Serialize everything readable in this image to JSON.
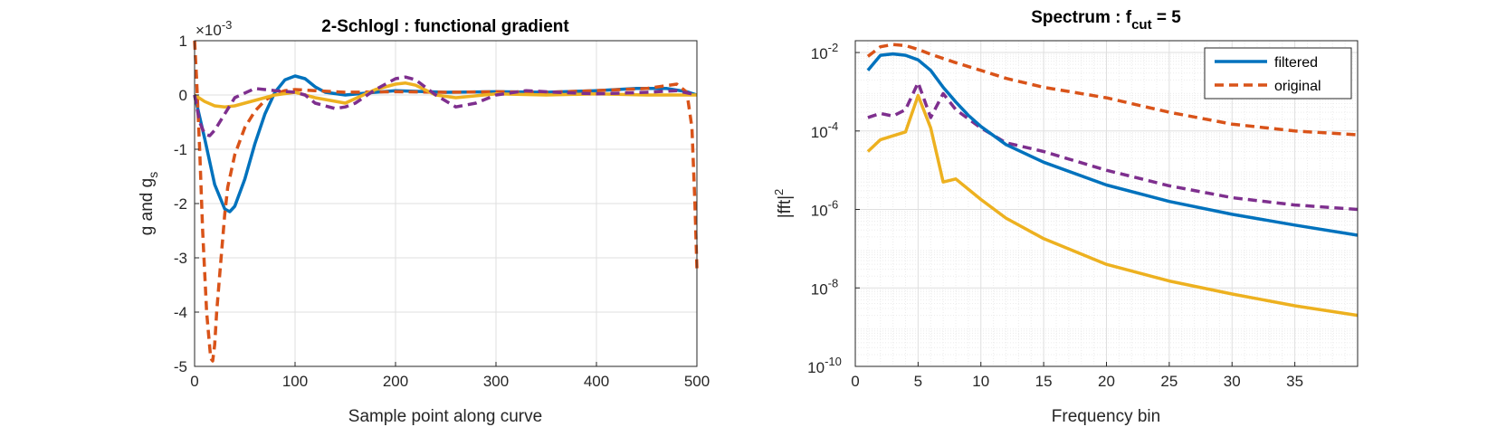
{
  "chart_data": [
    {
      "type": "line",
      "title": "2-Schlogl : functional gradient",
      "xlabel": "Sample point along curve",
      "ylabel": "g and g",
      "ylabel_sub": "s",
      "exponent_label": "×10",
      "exponent_power": "-3",
      "xlim": [
        0,
        500
      ],
      "ylim": [
        -5,
        1
      ],
      "xticks": [
        0,
        100,
        200,
        300,
        400,
        500
      ],
      "yticks": [
        1,
        0,
        -1,
        -2,
        -3,
        -4,
        -5
      ],
      "grid": true,
      "series": [
        {
          "color": "#0072BD",
          "style": "solid",
          "x": [
            0,
            10,
            20,
            30,
            35,
            40,
            50,
            60,
            70,
            80,
            90,
            100,
            110,
            120,
            130,
            150,
            180,
            200,
            250,
            300,
            350,
            400,
            440,
            470,
            490,
            500
          ],
          "y": [
            0,
            -0.8,
            -1.65,
            -2.1,
            -2.15,
            -2.05,
            -1.55,
            -0.9,
            -0.35,
            0.05,
            0.28,
            0.35,
            0.3,
            0.15,
            0.05,
            0.0,
            0.05,
            0.08,
            0.05,
            0.06,
            0.05,
            0.08,
            0.12,
            0.12,
            0.06,
            0
          ]
        },
        {
          "color": "#D95319",
          "style": "dashed",
          "x": [
            0,
            2,
            5,
            8,
            12,
            16,
            18,
            20,
            22,
            25,
            30,
            33,
            40,
            50,
            60,
            70,
            80,
            90,
            100,
            120,
            150,
            200,
            250,
            300,
            350,
            400,
            450,
            480,
            490,
            495,
            498,
            500
          ],
          "y": [
            1.0,
            0.3,
            -1.0,
            -2.5,
            -4.0,
            -4.85,
            -4.9,
            -4.6,
            -4.0,
            -3.3,
            -2.2,
            -1.7,
            -1.1,
            -0.6,
            -0.3,
            -0.1,
            0.02,
            0.08,
            0.1,
            0.08,
            0.05,
            0.06,
            0.05,
            0.06,
            0.05,
            0.08,
            0.12,
            0.2,
            0.05,
            -0.6,
            -2.0,
            -3.2
          ]
        },
        {
          "color": "#EDB120",
          "style": "solid",
          "x": [
            0,
            10,
            20,
            30,
            40,
            60,
            80,
            100,
            120,
            150,
            180,
            200,
            210,
            220,
            240,
            260,
            300,
            350,
            400,
            450,
            480,
            500
          ],
          "y": [
            0,
            -0.12,
            -0.2,
            -0.22,
            -0.2,
            -0.1,
            0.0,
            0.05,
            -0.05,
            -0.15,
            0.1,
            0.2,
            0.22,
            0.18,
            0.0,
            -0.05,
            0.02,
            0.0,
            0.02,
            0.0,
            0.0,
            0
          ]
        },
        {
          "color": "#7E2F8E",
          "style": "dashed",
          "x": [
            0,
            5,
            10,
            15,
            20,
            30,
            40,
            60,
            80,
            100,
            110,
            120,
            140,
            150,
            160,
            180,
            200,
            210,
            220,
            240,
            260,
            280,
            300,
            330,
            360,
            400,
            450,
            480,
            500
          ],
          "y": [
            0,
            -0.5,
            -0.72,
            -0.75,
            -0.65,
            -0.35,
            -0.05,
            0.12,
            0.08,
            0.05,
            0.0,
            -0.15,
            -0.25,
            -0.22,
            -0.15,
            0.1,
            0.3,
            0.33,
            0.28,
            0.0,
            -0.22,
            -0.15,
            0.0,
            0.08,
            0.05,
            0.02,
            0.05,
            0.08,
            0
          ]
        }
      ]
    },
    {
      "type": "line",
      "title": "Spectrum : f",
      "title_sub": "cut",
      "title_suffix": " = 5",
      "xlabel": "Frequency bin",
      "ylabel": "|fft|",
      "ylabel_sup": "2",
      "xlim": [
        0,
        40
      ],
      "ylim": [
        1e-10,
        0.02
      ],
      "yscale": "log",
      "xticks": [
        0,
        5,
        10,
        15,
        20,
        25,
        30,
        35
      ],
      "yticks": [
        {
          "value": 0.01,
          "base": "10",
          "exp": "-2"
        },
        {
          "value": 0.0001,
          "base": "10",
          "exp": "-4"
        },
        {
          "value": 1e-06,
          "base": "10",
          "exp": "-6"
        },
        {
          "value": 1e-08,
          "base": "10",
          "exp": "-8"
        },
        {
          "value": 1e-10,
          "base": "10",
          "exp": "-10"
        }
      ],
      "grid": true,
      "legend": {
        "placement": "top-right",
        "entries": [
          {
            "label": "filtered",
            "color": "#0072BD",
            "style": "solid"
          },
          {
            "label": "original",
            "color": "#D95319",
            "style": "dashed"
          }
        ]
      },
      "series": [
        {
          "name": "filtered",
          "color": "#0072BD",
          "style": "solid",
          "x": [
            1,
            2,
            3,
            4,
            5,
            6,
            7,
            8,
            9,
            10,
            12,
            15,
            20,
            25,
            30,
            35,
            40
          ],
          "y": [
            0.0035,
            0.0085,
            0.0092,
            0.0085,
            0.0065,
            0.0035,
            0.0013,
            0.00055,
            0.00025,
            0.00013,
            4.5e-05,
            1.6e-05,
            4.2e-06,
            1.6e-06,
            7.5e-07,
            4e-07,
            2.2e-07
          ]
        },
        {
          "name": "original",
          "color": "#D95319",
          "style": "dashed",
          "x": [
            1,
            2,
            3,
            4,
            5,
            6,
            8,
            10,
            12,
            15,
            20,
            25,
            30,
            35,
            40
          ],
          "y": [
            0.008,
            0.014,
            0.016,
            0.015,
            0.012,
            0.009,
            0.0055,
            0.0035,
            0.0022,
            0.0013,
            0.0007,
            0.0003,
            0.00015,
            0.0001,
            8e-05
          ]
        },
        {
          "color": "#EDB120",
          "style": "solid",
          "x": [
            1,
            2,
            4,
            5,
            6,
            7,
            8,
            10,
            12,
            15,
            20,
            25,
            30,
            35,
            40
          ],
          "y": [
            3e-05,
            6e-05,
            9.5e-05,
            0.0008,
            0.00012,
            5e-06,
            6e-06,
            1.8e-06,
            6e-07,
            1.8e-07,
            4e-08,
            1.5e-08,
            7e-09,
            3.5e-09,
            2e-09
          ]
        },
        {
          "color": "#7E2F8E",
          "style": "dashed",
          "x": [
            1,
            2,
            3,
            4,
            5,
            6,
            7,
            8,
            10,
            12,
            15,
            20,
            25,
            30,
            35,
            40
          ],
          "y": [
            0.00022,
            0.00028,
            0.00024,
            0.00035,
            0.0017,
            0.00022,
            0.0009,
            0.00035,
            0.00012,
            5e-05,
            3e-05,
            1e-05,
            4e-06,
            2e-06,
            1.3e-06,
            1e-06
          ]
        }
      ]
    }
  ]
}
